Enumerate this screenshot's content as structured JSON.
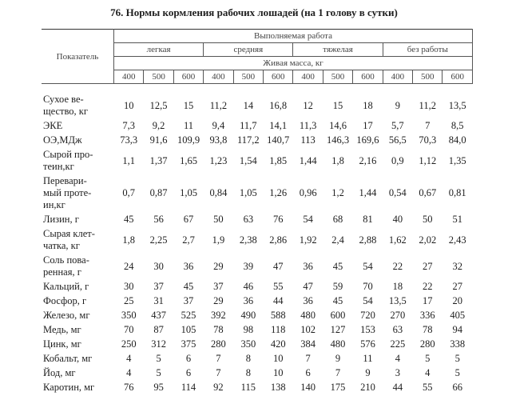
{
  "title": "76. Нормы кормления рабочих лошадей (на 1 голову в сутки)",
  "header": {
    "indicator": "Показатель",
    "work": "Выполняемая работа",
    "groups": [
      "легкая",
      "средняя",
      "тяжелая",
      "без работы"
    ],
    "mass": "Живая масса, кг",
    "weights": [
      "400",
      "500",
      "600",
      "400",
      "500",
      "600",
      "400",
      "500",
      "600",
      "400",
      "500",
      "600"
    ]
  },
  "rows": [
    {
      "label": [
        "Сухое ве-",
        "щество, кг"
      ],
      "values": [
        "10",
        "12,5",
        "15",
        "11,2",
        "14",
        "16,8",
        "12",
        "15",
        "18",
        "9",
        "11,2",
        "13,5"
      ]
    },
    {
      "label": [
        "ЭКЕ"
      ],
      "values": [
        "7,3",
        "9,2",
        "11",
        "9,4",
        "11,7",
        "14,1",
        "11,3",
        "14,6",
        "17",
        "5,7",
        "7",
        "8,5"
      ]
    },
    {
      "label": [
        "ОЭ,МДж"
      ],
      "values": [
        "73,3",
        "91,6",
        "109,9",
        "93,8",
        "117,2",
        "140,7",
        "113",
        "146,3",
        "169,6",
        "56,5",
        "70,3",
        "84,0"
      ]
    },
    {
      "label": [
        "Сырой про-",
        "теин,кг"
      ],
      "values": [
        "1,1",
        "1,37",
        "1,65",
        "1,23",
        "1,54",
        "1,85",
        "1,44",
        "1,8",
        "2,16",
        "0,9",
        "1,12",
        "1,35"
      ]
    },
    {
      "label": [
        "Перевари-",
        "мый проте-",
        "ин,кг"
      ],
      "values": [
        "0,7",
        "0,87",
        "1,05",
        "0,84",
        "1,05",
        "1,26",
        "0,96",
        "1,2",
        "1,44",
        "0,54",
        "0,67",
        "0,81"
      ]
    },
    {
      "label": [
        "Лизин, г"
      ],
      "values": [
        "45",
        "56",
        "67",
        "50",
        "63",
        "76",
        "54",
        "68",
        "81",
        "40",
        "50",
        "51"
      ]
    },
    {
      "label": [
        "Сырая клет-",
        "чатка, кг"
      ],
      "values": [
        "1,8",
        "2,25",
        "2,7",
        "1,9",
        "2,38",
        "2,86",
        "1,92",
        "2,4",
        "2,88",
        "1,62",
        "2,02",
        "2,43"
      ]
    },
    {
      "label": [
        "Соль пова-",
        "ренная, г"
      ],
      "values": [
        "24",
        "30",
        "36",
        "29",
        "39",
        "47",
        "36",
        "45",
        "54",
        "22",
        "27",
        "32"
      ]
    },
    {
      "label": [
        "Кальций, г"
      ],
      "values": [
        "30",
        "37",
        "45",
        "37",
        "46",
        "55",
        "47",
        "59",
        "70",
        "18",
        "22",
        "27"
      ]
    },
    {
      "label": [
        "Фосфор, г"
      ],
      "values": [
        "25",
        "31",
        "37",
        "29",
        "36",
        "44",
        "36",
        "45",
        "54",
        "13,5",
        "17",
        "20"
      ]
    },
    {
      "label": [
        "Железо, мг"
      ],
      "values": [
        "350",
        "437",
        "525",
        "392",
        "490",
        "588",
        "480",
        "600",
        "720",
        "270",
        "336",
        "405"
      ]
    },
    {
      "label": [
        "Медь, мг"
      ],
      "values": [
        "70",
        "87",
        "105",
        "78",
        "98",
        "118",
        "102",
        "127",
        "153",
        "63",
        "78",
        "94"
      ]
    },
    {
      "label": [
        "Цинк, мг"
      ],
      "values": [
        "250",
        "312",
        "375",
        "280",
        "350",
        "420",
        "384",
        "480",
        "576",
        "225",
        "280",
        "338"
      ]
    },
    {
      "label": [
        "Кобальт, мг"
      ],
      "values": [
        "4",
        "5",
        "6",
        "7",
        "8",
        "10",
        "7",
        "9",
        "11",
        "4",
        "5",
        "5"
      ]
    },
    {
      "label": [
        "Йод, мг"
      ],
      "values": [
        "4",
        "5",
        "6",
        "7",
        "8",
        "10",
        "6",
        "7",
        "9",
        "3",
        "4",
        "5"
      ]
    },
    {
      "label": [
        "Каротин, мг"
      ],
      "values": [
        "76",
        "95",
        "114",
        "92",
        "115",
        "138",
        "140",
        "175",
        "210",
        "44",
        "55",
        "66"
      ]
    }
  ]
}
